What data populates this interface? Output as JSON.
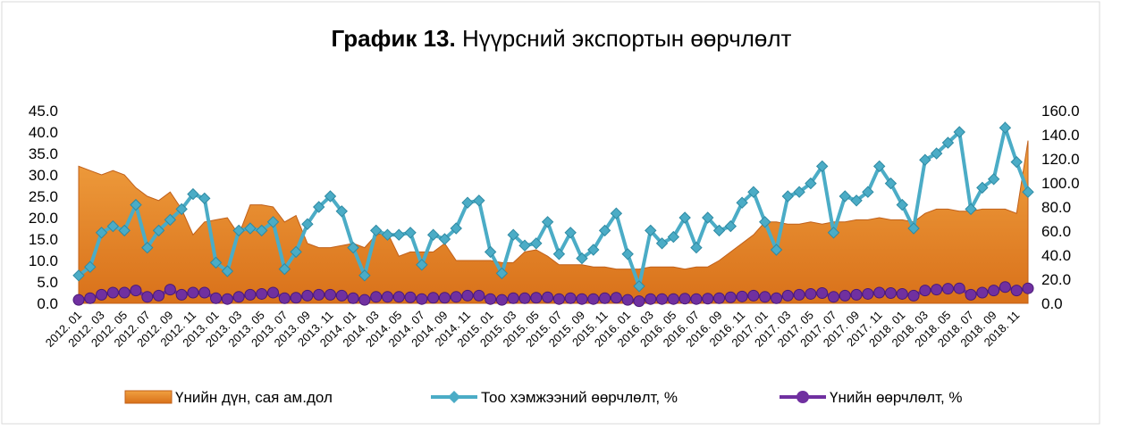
{
  "chart_data": {
    "type": "combo",
    "title_bold": "График 13.",
    "title": "Нүүрсний экспортын өөрчлөлт",
    "categories": [
      "2012. 01",
      null,
      "2012. 03",
      null,
      "2012. 05",
      null,
      "2012. 07",
      null,
      "2012. 09",
      null,
      "2012. 11",
      null,
      "2013. 01",
      null,
      "2013. 03",
      null,
      "2013. 05",
      null,
      "2013. 07",
      null,
      "2013. 09",
      null,
      "2013. 11",
      null,
      "2014. 01",
      null,
      "2014. 03",
      null,
      "2014. 05",
      null,
      "2014. 07",
      null,
      "2014. 09",
      null,
      "2014. 11",
      null,
      "2015. 01",
      null,
      "2015. 03",
      null,
      "2015. 05",
      null,
      "2015. 07",
      null,
      "2015. 09",
      null,
      "2015. 11",
      null,
      "2016. 01",
      null,
      "2016. 03",
      null,
      "2016. 05",
      null,
      "2016. 07",
      null,
      "2016. 09",
      null,
      "2016. 11",
      null,
      "2017. 01",
      null,
      "2017. 03",
      null,
      "2017. 05",
      null,
      "2017. 07",
      null,
      "2017. 09",
      null,
      "2017. 11",
      null,
      "2018. 01",
      null,
      "2018. 03",
      null,
      "2018. 05",
      null,
      "2018. 07",
      null,
      "2018. 09",
      null,
      "2018. 11",
      null
    ],
    "series": [
      {
        "name": "Үнийн дүн, сая ам.дол",
        "kind": "area",
        "color": "#e8892a",
        "values": [
          32,
          31,
          30,
          31,
          30,
          27,
          25,
          24,
          26,
          22,
          16,
          19,
          19.5,
          20,
          16,
          23,
          23,
          22.5,
          19,
          20.5,
          14,
          13,
          13,
          13.5,
          14,
          13,
          16,
          16.5,
          11,
          12,
          12,
          12,
          14,
          10,
          10,
          10,
          10,
          9.5,
          9.5,
          12,
          12.5,
          11,
          9,
          9,
          9,
          8.5,
          8.5,
          8,
          8,
          8,
          8.5,
          8.5,
          8.5,
          8,
          8.5,
          8.5,
          10,
          12,
          14,
          16,
          19,
          19,
          18.5,
          18.5,
          19,
          18.5,
          19,
          19,
          19.5,
          19.5,
          20,
          19.5,
          19.5,
          19,
          21,
          22,
          22,
          21.5,
          21.5,
          22,
          22,
          22,
          21,
          38
        ]
      },
      {
        "name": "Тоо хэмжээний өөрчлөлт, %",
        "kind": "line-diamond",
        "color": "#4bacc6",
        "values": [
          6.5,
          8.5,
          16.5,
          18,
          17,
          23,
          13,
          17,
          19.5,
          22,
          25.5,
          24.5,
          9.5,
          7.5,
          17,
          17.5,
          17,
          19,
          8,
          12,
          18.5,
          22.5,
          25,
          21.5,
          13,
          6.5,
          17,
          16,
          16,
          16.5,
          9,
          16,
          15,
          17.5,
          23.5,
          24,
          12,
          7,
          16,
          13.5,
          14,
          19,
          11.5,
          16.5,
          10.5,
          12.5,
          17,
          21,
          11.5,
          4,
          17,
          14,
          15.5,
          20,
          13,
          20,
          17,
          18,
          23.5,
          26,
          19,
          12.5,
          25,
          26,
          28,
          32,
          16.5,
          25,
          24,
          26,
          32,
          28,
          23,
          17.5,
          33.5,
          35,
          37.5,
          40,
          22,
          27,
          29,
          41,
          33,
          26
        ]
      },
      {
        "name": "Үнийн өөрчлөлт, %",
        "kind": "line-circle",
        "color": "#7030a0",
        "values": [
          0.8,
          1.2,
          2,
          2.5,
          2.5,
          3,
          1.5,
          1.8,
          3.2,
          2,
          2.5,
          2.5,
          1.2,
          1,
          1.5,
          2,
          2.2,
          2.5,
          1.2,
          1.3,
          1.8,
          2,
          2,
          1.8,
          1.2,
          0.8,
          1.5,
          1.5,
          1.5,
          1.4,
          1,
          1.3,
          1.3,
          1.5,
          1.8,
          1.8,
          1,
          0.8,
          1.2,
          1.2,
          1.3,
          1.4,
          1,
          1.2,
          1,
          1,
          1.2,
          1.3,
          0.8,
          0.5,
          1,
          1,
          1,
          1.1,
          1,
          1.1,
          1.2,
          1.4,
          1.6,
          1.8,
          1.5,
          1.2,
          1.8,
          2,
          2.2,
          2.4,
          1.5,
          1.8,
          2,
          2.2,
          2.5,
          2.4,
          2.2,
          1.8,
          3,
          3.2,
          3.4,
          3.5,
          2,
          2.5,
          3,
          3.8,
          3,
          3.5
        ]
      }
    ],
    "ylim": [
      0,
      45
    ],
    "yticks": [
      {
        "value": 0,
        "label": "0.0"
      },
      {
        "value": 5,
        "label": "5.0"
      },
      {
        "value": 10,
        "label": "10.0"
      },
      {
        "value": 15,
        "label": "15.0"
      },
      {
        "value": 20,
        "label": "20.0"
      },
      {
        "value": 25,
        "label": "25.0"
      },
      {
        "value": 30,
        "label": "30.0"
      },
      {
        "value": 35,
        "label": "35.0"
      },
      {
        "value": 40,
        "label": "40.0"
      },
      {
        "value": 45,
        "label": "45.0"
      }
    ],
    "y2lim": [
      0,
      160
    ],
    "y2ticks": [
      {
        "value": 0,
        "label": "0.0"
      },
      {
        "value": 20,
        "label": "20.0"
      },
      {
        "value": 40,
        "label": "40.0"
      },
      {
        "value": 60,
        "label": "60.0"
      },
      {
        "value": 80,
        "label": "80.0"
      },
      {
        "value": 100,
        "label": "100.0"
      },
      {
        "value": 120,
        "label": "120.0"
      },
      {
        "value": 140,
        "label": "140.0"
      },
      {
        "value": 160,
        "label": "160.0"
      }
    ],
    "legend": "bottom"
  }
}
